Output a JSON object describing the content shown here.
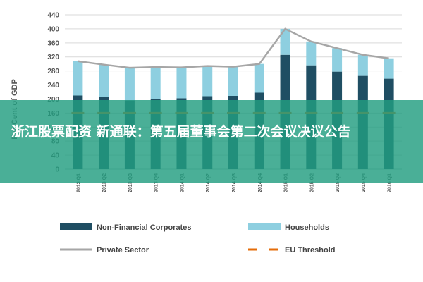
{
  "chart_data": {
    "type": "bar",
    "ylabel": "Per Cent of GDP",
    "ylim": [
      0,
      440
    ],
    "yticks": [
      0,
      40,
      80,
      120,
      160,
      200,
      240,
      280,
      320,
      360,
      400,
      440
    ],
    "categories": [
      "2013 Q1",
      "2013 Q2",
      "2013 Q3",
      "2013 Q4",
      "2014 Q1",
      "2014 Q2",
      "2014 Q3",
      "2014 Q4",
      "2015 Q1",
      "2015 Q2",
      "2015 Q3",
      "2015 Q4",
      "2016 Q1"
    ],
    "stacked": true,
    "series": [
      {
        "name": "Non-Financial Corporates",
        "kind": "bar",
        "color": "#1f4e63",
        "values": [
          210,
          205,
          196,
          200,
          202,
          208,
          209,
          218,
          326,
          296,
          278,
          266,
          258
        ]
      },
      {
        "name": "Households",
        "kind": "bar",
        "color": "#8ecfe0",
        "values": [
          98,
          93,
          93,
          91,
          88,
          86,
          83,
          82,
          74,
          68,
          67,
          60,
          58
        ]
      },
      {
        "name": "Private Sector",
        "kind": "line",
        "color": "#a6a6a6",
        "values": [
          308,
          298,
          289,
          291,
          290,
          294,
          292,
          300,
          400,
          364,
          345,
          326,
          316
        ]
      },
      {
        "name": "EU Threshold",
        "kind": "dashed",
        "color": "#e46c0a",
        "values": [
          160,
          160,
          160,
          160,
          160,
          160,
          160,
          160,
          160,
          160,
          160,
          160,
          160
        ]
      }
    ],
    "legend_position": "bottom",
    "grid": true
  },
  "banner": {
    "text": "浙江股票配资 新通联：第五届董事会第二次会议决议公告"
  }
}
